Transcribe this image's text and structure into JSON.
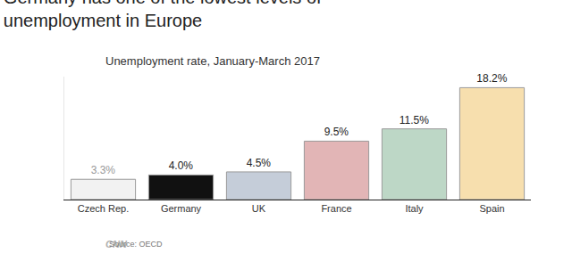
{
  "chart_data": {
    "type": "bar",
    "title": "Germany has one of the lowest levels of unemployment in Europe",
    "subtitle": "Unemployment rate, January-March 2017",
    "categories": [
      "Czech Rep.",
      "Germany",
      "UK",
      "France",
      "Italy",
      "Spain"
    ],
    "values": [
      3.3,
      4.0,
      4.5,
      9.5,
      11.5,
      18.2
    ],
    "value_labels": [
      "3.3%",
      "4.0%",
      "4.5%",
      "9.5%",
      "11.5%",
      "18.2%"
    ],
    "colors": [
      "#f2f2f2",
      "#111111",
      "#c5cdd9",
      "#e2b5b6",
      "#bdd7c6",
      "#f7dfae"
    ],
    "ylim": [
      0,
      20
    ],
    "data_labels": true,
    "tick_labels": "x",
    "grid": false,
    "source": "Source: OECD",
    "logo": "CNN"
  }
}
